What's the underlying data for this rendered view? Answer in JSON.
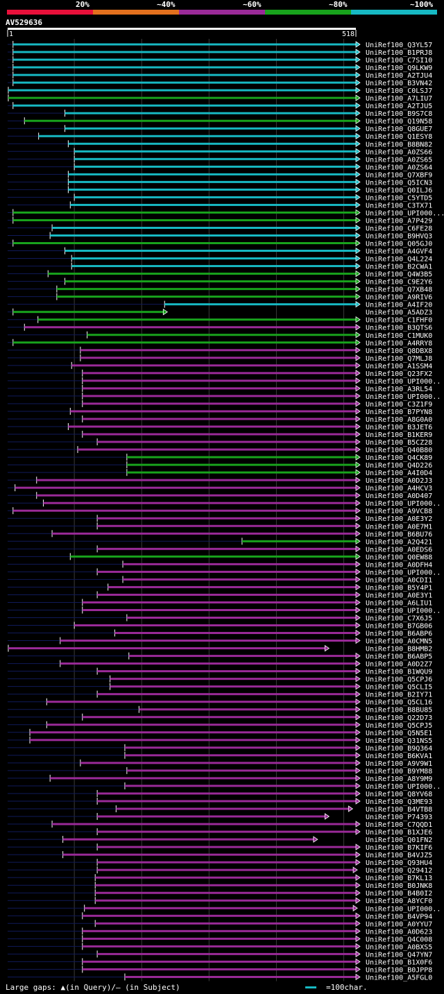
{
  "query": {
    "id": "AV529636",
    "start_label": "1",
    "end_label": "518",
    "length": 518
  },
  "legend": {
    "segments": [
      {
        "label": "20%",
        "color": "#e8103a"
      },
      {
        "label": "~40%",
        "color": "#e2701e"
      },
      {
        "label": "~60%",
        "color": "#9a2a98"
      },
      {
        "label": "~80%",
        "color": "#18a31c"
      },
      {
        "label": "~100%",
        "color": "#17b9c3"
      }
    ]
  },
  "footer": {
    "gaps_text": "Large gaps: ▲(in Query)/– (in Subject)",
    "scale_text": "=100char."
  },
  "chart_data": {
    "type": "alignment-overview",
    "x_range": [
      1,
      518
    ],
    "gridlines_x": [
      100,
      200,
      300,
      400,
      500
    ],
    "color_by_identity": {
      "cyan": "~100%",
      "green": "~80%",
      "purple": "~60%",
      "orange": "~40%",
      "red": "20%"
    },
    "hits": [
      {
        "name": "UniRef100_Q3YL57",
        "start": 9,
        "end": 518,
        "color": "cyan"
      },
      {
        "name": "UniRef100_B1PRJ8",
        "start": 9,
        "end": 518,
        "color": "cyan"
      },
      {
        "name": "UniRef100_C7SI10",
        "start": 9,
        "end": 518,
        "color": "cyan"
      },
      {
        "name": "UniRef100_Q9LKW9",
        "start": 9,
        "end": 518,
        "color": "cyan"
      },
      {
        "name": "UniRef100_A2TJU4",
        "start": 9,
        "end": 518,
        "color": "cyan"
      },
      {
        "name": "UniRef100_B3VN42",
        "start": 9,
        "end": 518,
        "color": "cyan"
      },
      {
        "name": "UniRef100_C0LSJ7",
        "start": 2,
        "end": 518,
        "color": "cyan"
      },
      {
        "name": "UniRef100_A7LIU7",
        "start": 2,
        "end": 518,
        "color": "green"
      },
      {
        "name": "UniRef100_A2TJU5",
        "start": 9,
        "end": 518,
        "color": "cyan"
      },
      {
        "name": "UniRef100_B9S7C8",
        "start": 86,
        "end": 518,
        "color": "cyan"
      },
      {
        "name": "UniRef100_Q19N58",
        "start": 26,
        "end": 518,
        "color": "green"
      },
      {
        "name": "UniRef100_Q8GUE7",
        "start": 86,
        "end": 518,
        "color": "cyan"
      },
      {
        "name": "UniRef100_Q1ESY8",
        "start": 47,
        "end": 518,
        "color": "cyan"
      },
      {
        "name": "UniRef100_B8BN82",
        "start": 91,
        "end": 518,
        "color": "cyan"
      },
      {
        "name": "UniRef100_A0ZS66",
        "start": 100,
        "end": 518,
        "color": "cyan"
      },
      {
        "name": "UniRef100_A0ZS65",
        "start": 100,
        "end": 518,
        "color": "cyan"
      },
      {
        "name": "UniRef100_A0ZS64",
        "start": 100,
        "end": 518,
        "color": "cyan"
      },
      {
        "name": "UniRef100_Q7XBF9",
        "start": 91,
        "end": 518,
        "color": "cyan"
      },
      {
        "name": "UniRef100_Q5ICN3",
        "start": 91,
        "end": 518,
        "color": "cyan"
      },
      {
        "name": "UniRef100_Q0ILJ6",
        "start": 91,
        "end": 518,
        "color": "cyan"
      },
      {
        "name": "UniRef100_C5YTD5",
        "start": 100,
        "end": 518,
        "color": "cyan"
      },
      {
        "name": "UniRef100_C3TX71",
        "start": 94,
        "end": 518,
        "color": "cyan"
      },
      {
        "name": "UniRef100_UPI000...",
        "start": 9,
        "end": 518,
        "color": "green"
      },
      {
        "name": "UniRef100_A7P429",
        "start": 9,
        "end": 518,
        "color": "green"
      },
      {
        "name": "UniRef100_C6FE28",
        "start": 67,
        "end": 518,
        "color": "cyan"
      },
      {
        "name": "UniRef100_B9HVQ3",
        "start": 64,
        "end": 518,
        "color": "cyan"
      },
      {
        "name": "UniRef100_Q05GJ0",
        "start": 9,
        "end": 518,
        "color": "green"
      },
      {
        "name": "UniRef100_A4GVF4",
        "start": 86,
        "end": 518,
        "color": "cyan"
      },
      {
        "name": "UniRef100_Q4L224",
        "start": 96,
        "end": 518,
        "color": "cyan"
      },
      {
        "name": "UniRef100_B2CWA1",
        "start": 96,
        "end": 518,
        "color": "cyan"
      },
      {
        "name": "UniRef100_Q4W3B5",
        "start": 61,
        "end": 518,
        "color": "green"
      },
      {
        "name": "UniRef100_C9E2Y6",
        "start": 86,
        "end": 518,
        "color": "green"
      },
      {
        "name": "UniRef100_Q7XB48",
        "start": 74,
        "end": 518,
        "color": "green"
      },
      {
        "name": "UniRef100_A9RIV6",
        "start": 74,
        "end": 518,
        "color": "green"
      },
      {
        "name": "UniRef100_A4IF20",
        "start": 234,
        "end": 518,
        "color": "cyan"
      },
      {
        "name": "UniRef100_A5ADZ3",
        "start": 9,
        "end": 232,
        "color": "green"
      },
      {
        "name": "UniRef100_C1FHF0",
        "start": 46,
        "end": 518,
        "color": "green"
      },
      {
        "name": "UniRef100_B3QTS6",
        "start": 26,
        "end": 518,
        "color": "purple"
      },
      {
        "name": "UniRef100_C1MUK0",
        "start": 119,
        "end": 518,
        "color": "green"
      },
      {
        "name": "UniRef100_A4RRY8",
        "start": 9,
        "end": 518,
        "color": "green"
      },
      {
        "name": "UniRef100_Q8DBX8",
        "start": 109,
        "end": 518,
        "color": "purple"
      },
      {
        "name": "UniRef100_Q7MLJ8",
        "start": 109,
        "end": 518,
        "color": "purple"
      },
      {
        "name": "UniRef100_A1SSM4",
        "start": 96,
        "end": 518,
        "color": "purple"
      },
      {
        "name": "UniRef100_Q23FX2",
        "start": 112,
        "end": 518,
        "color": "purple"
      },
      {
        "name": "UniRef100_UPI000..",
        "start": 112,
        "end": 518,
        "color": "purple"
      },
      {
        "name": "UniRef100_A3RL54",
        "start": 112,
        "end": 518,
        "color": "purple"
      },
      {
        "name": "UniRef100_UPI000..",
        "start": 112,
        "end": 518,
        "color": "purple"
      },
      {
        "name": "UniRef100_C3Z1F9",
        "start": 112,
        "end": 518,
        "color": "purple"
      },
      {
        "name": "UniRef100_B7PYN8",
        "start": 94,
        "end": 518,
        "color": "purple"
      },
      {
        "name": "UniRef100_A8G0A0",
        "start": 112,
        "end": 518,
        "color": "purple"
      },
      {
        "name": "UniRef100_B3JET6",
        "start": 91,
        "end": 518,
        "color": "purple"
      },
      {
        "name": "UniRef100_B1KER9",
        "start": 112,
        "end": 518,
        "color": "purple"
      },
      {
        "name": "UniRef100_B5CZ28",
        "start": 134,
        "end": 518,
        "color": "purple"
      },
      {
        "name": "UniRef100_Q40B80",
        "start": 105,
        "end": 518,
        "color": "purple"
      },
      {
        "name": "UniRef100_Q4CK89",
        "start": 178,
        "end": 518,
        "color": "green"
      },
      {
        "name": "UniRef100_Q4D226",
        "start": 178,
        "end": 518,
        "color": "green"
      },
      {
        "name": "UniRef100_A4I0D4",
        "start": 178,
        "end": 518,
        "color": "green"
      },
      {
        "name": "UniRef100_A0D2J3",
        "start": 44,
        "end": 518,
        "color": "purple"
      },
      {
        "name": "UniRef100_A4HCV3",
        "start": 12,
        "end": 518,
        "color": "purple"
      },
      {
        "name": "UniRef100_A0D407",
        "start": 44,
        "end": 518,
        "color": "purple"
      },
      {
        "name": "UniRef100_UPI000..",
        "start": 54,
        "end": 518,
        "color": "purple"
      },
      {
        "name": "UniRef100_A9VCB8",
        "start": 9,
        "end": 518,
        "color": "purple"
      },
      {
        "name": "UniRef100_A0E3Y2",
        "start": 134,
        "end": 518,
        "color": "purple"
      },
      {
        "name": "UniRef100_A0E7M1",
        "start": 134,
        "end": 518,
        "color": "purple"
      },
      {
        "name": "UniRef100_B6BU76",
        "start": 67,
        "end": 518,
        "color": "purple"
      },
      {
        "name": "UniRef100_A2Q421",
        "start": 349,
        "end": 518,
        "color": "green"
      },
      {
        "name": "UniRef100_A0EDS6",
        "start": 134,
        "end": 518,
        "color": "purple"
      },
      {
        "name": "UniRef100_Q0EW88",
        "start": 94,
        "end": 518,
        "color": "green"
      },
      {
        "name": "UniRef100_A0DFH4",
        "start": 172,
        "end": 518,
        "color": "purple"
      },
      {
        "name": "UniRef100_UPI000..",
        "start": 134,
        "end": 518,
        "color": "purple"
      },
      {
        "name": "UniRef100_A0CDI1",
        "start": 172,
        "end": 518,
        "color": "purple"
      },
      {
        "name": "UniRef100_B5Y4P1",
        "start": 150,
        "end": 518,
        "color": "purple"
      },
      {
        "name": "UniRef100_A0E3Y1",
        "start": 134,
        "end": 518,
        "color": "purple"
      },
      {
        "name": "UniRef100_A6LIU1",
        "start": 112,
        "end": 518,
        "color": "purple"
      },
      {
        "name": "UniRef100_UPI000..",
        "start": 112,
        "end": 518,
        "color": "purple"
      },
      {
        "name": "UniRef100_C7X6J5",
        "start": 178,
        "end": 518,
        "color": "purple"
      },
      {
        "name": "UniRef100_B7GB06",
        "start": 100,
        "end": 518,
        "color": "purple"
      },
      {
        "name": "UniRef100_B6ABP6",
        "start": 160,
        "end": 518,
        "color": "purple"
      },
      {
        "name": "UniRef100_A0CMN5",
        "start": 79,
        "end": 518,
        "color": "purple"
      },
      {
        "name": "UniRef100_B8HMB2",
        "start": 2,
        "end": 472,
        "color": "purple"
      },
      {
        "name": "UniRef100_B6ABP5",
        "start": 181,
        "end": 518,
        "color": "purple"
      },
      {
        "name": "UniRef100_A0D2Z7",
        "start": 79,
        "end": 518,
        "color": "purple"
      },
      {
        "name": "UniRef100_B1WQU9",
        "start": 134,
        "end": 518,
        "color": "purple"
      },
      {
        "name": "UniRef100_Q5CPJ6",
        "start": 153,
        "end": 518,
        "color": "purple"
      },
      {
        "name": "UniRef100_Q5CLI5",
        "start": 153,
        "end": 518,
        "color": "purple"
      },
      {
        "name": "UniRef100_B2IY71",
        "start": 134,
        "end": 518,
        "color": "purple"
      },
      {
        "name": "UniRef100_Q5CL16",
        "start": 59,
        "end": 518,
        "color": "purple"
      },
      {
        "name": "UniRef100_B8BU85",
        "start": 196,
        "end": 518,
        "color": "purple"
      },
      {
        "name": "UniRef100_Q22D73",
        "start": 112,
        "end": 518,
        "color": "purple"
      },
      {
        "name": "UniRef100_Q5CPJ5",
        "start": 59,
        "end": 518,
        "color": "purple"
      },
      {
        "name": "UniRef100_Q5N5E1",
        "start": 34,
        "end": 518,
        "color": "purple"
      },
      {
        "name": "UniRef100_Q31NS5",
        "start": 34,
        "end": 518,
        "color": "purple"
      },
      {
        "name": "UniRef100_B9Q364",
        "start": 175,
        "end": 518,
        "color": "purple"
      },
      {
        "name": "UniRef100_B6KVA1",
        "start": 175,
        "end": 518,
        "color": "purple"
      },
      {
        "name": "UniRef100_A9V9W1",
        "start": 109,
        "end": 518,
        "color": "purple"
      },
      {
        "name": "UniRef100_B9YM88",
        "start": 178,
        "end": 518,
        "color": "purple"
      },
      {
        "name": "UniRef100_A8Y9M9",
        "start": 64,
        "end": 518,
        "color": "purple"
      },
      {
        "name": "UniRef100_UPI000..",
        "start": 175,
        "end": 518,
        "color": "purple"
      },
      {
        "name": "UniRef100_Q8YV68",
        "start": 134,
        "end": 518,
        "color": "purple"
      },
      {
        "name": "UniRef100_Q3ME93",
        "start": 134,
        "end": 518,
        "color": "purple"
      },
      {
        "name": "UniRef100_B4VTB8",
        "start": 162,
        "end": 507,
        "color": "purple"
      },
      {
        "name": "UniRef100_P74393",
        "start": 134,
        "end": 472,
        "color": "purple"
      },
      {
        "name": "UniRef100_C7QQD1",
        "start": 67,
        "end": 518,
        "color": "purple"
      },
      {
        "name": "UniRef100_B1XJE6",
        "start": 134,
        "end": 518,
        "color": "purple"
      },
      {
        "name": "UniRef100_Q01FN2",
        "start": 83,
        "end": 455,
        "color": "purple"
      },
      {
        "name": "UniRef100_B7KIF6",
        "start": 134,
        "end": 518,
        "color": "purple"
      },
      {
        "name": "UniRef100_B4VJZ5",
        "start": 83,
        "end": 518,
        "color": "purple"
      },
      {
        "name": "UniRef100_Q93HU4",
        "start": 134,
        "end": 518,
        "color": "purple"
      },
      {
        "name": "UniRef100_Q29412",
        "start": 134,
        "end": 514,
        "color": "purple"
      },
      {
        "name": "UniRef100_B7KL13",
        "start": 131,
        "end": 518,
        "color": "purple"
      },
      {
        "name": "UniRef100_B0JNK8",
        "start": 131,
        "end": 518,
        "color": "purple"
      },
      {
        "name": "UniRef100_B4B0I2",
        "start": 131,
        "end": 518,
        "color": "purple"
      },
      {
        "name": "UniRef100_A8YCF0",
        "start": 131,
        "end": 518,
        "color": "purple"
      },
      {
        "name": "UniRef100_UPI000..",
        "start": 115,
        "end": 514,
        "color": "purple"
      },
      {
        "name": "UniRef100_B4VP94",
        "start": 112,
        "end": 518,
        "color": "purple"
      },
      {
        "name": "UniRef100_A0YYU7",
        "start": 131,
        "end": 518,
        "color": "purple"
      },
      {
        "name": "UniRef100_A0D623",
        "start": 112,
        "end": 518,
        "color": "purple"
      },
      {
        "name": "UniRef100_Q4C008",
        "start": 112,
        "end": 518,
        "color": "purple"
      },
      {
        "name": "UniRef100_A0BXS5",
        "start": 112,
        "end": 518,
        "color": "purple"
      },
      {
        "name": "UniRef100_Q47YN7",
        "start": 134,
        "end": 518,
        "color": "purple"
      },
      {
        "name": "UniRef100_B1X0F6",
        "start": 112,
        "end": 518,
        "color": "purple"
      },
      {
        "name": "UniRef100_B0JPP8",
        "start": 112,
        "end": 518,
        "color": "purple"
      },
      {
        "name": "UniRef100_A5FGL0",
        "start": 175,
        "end": 518,
        "color": "purple"
      }
    ]
  }
}
